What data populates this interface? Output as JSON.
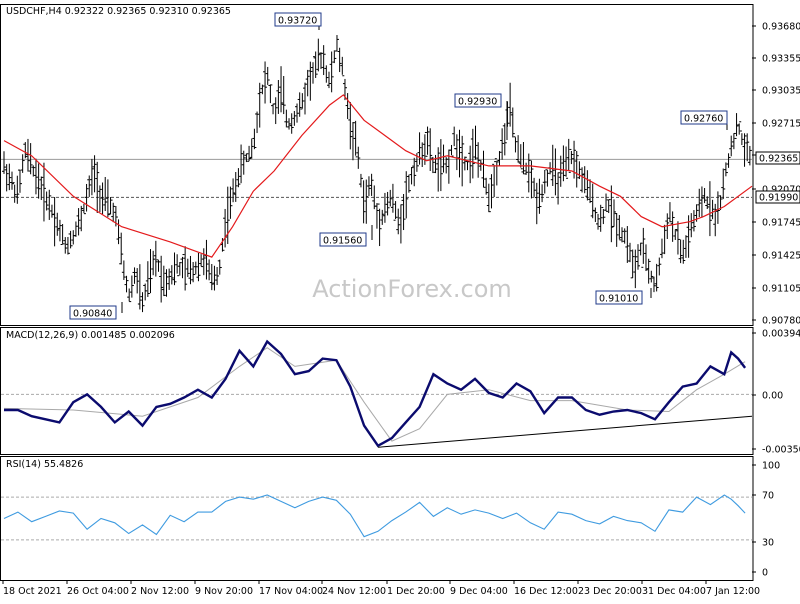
{
  "colors": {
    "background": "#ffffff",
    "price": "#000000",
    "moving_average": "#e41a1c",
    "macd": "#0b0b6e",
    "macd_signal": "#a9a9a9",
    "rsi": "#3f9be0",
    "level_line": "#555555",
    "border": "#000000"
  },
  "chart_data": [
    {
      "type": "candlestick",
      "title": "USDCHF,H4  0.92322 0.92365 0.92310 0.92365",
      "ylim": [
        0.9078,
        0.9372
      ],
      "y_ticks": [
        "0.93680",
        "0.93355",
        "0.93035",
        "0.92715",
        "0.92395",
        "0.92070",
        "0.91745",
        "0.91425",
        "0.91105",
        "0.90780"
      ],
      "current_price": "0.92365",
      "level_line": "0.91990",
      "x_ticks": [
        "18 Oct 2021",
        "26 Oct 04:00",
        "2 Nov 12:00",
        "9 Nov 20:00",
        "17 Nov 04:00",
        "24 Nov 12:00",
        "1 Dec 20:00",
        "9 Dec 04:00",
        "16 Dec 12:00",
        "23 Dec 20:00",
        "31 Dec 04:00",
        "7 Jan 12:00"
      ],
      "annotations": [
        "0.93720",
        "0.92930",
        "0.92760",
        "0.91560",
        "0.91010",
        "0.90840"
      ],
      "watermark": "ActionForex.com",
      "series": [
        {
          "points": [
            [
              0,
              0.923
            ],
            [
              2,
              0.92
            ],
            [
              3,
              0.9245
            ],
            [
              5,
              0.9215
            ],
            [
              7,
              0.9185
            ],
            [
              9,
              0.915
            ],
            [
              11,
              0.9175
            ],
            [
              13,
              0.9225
            ],
            [
              14,
              0.92
            ],
            [
              16,
              0.9185
            ],
            [
              17,
              0.914
            ],
            [
              18,
              0.91
            ],
            [
              19,
              0.9125
            ],
            [
              20,
              0.9095
            ],
            [
              21,
              0.912
            ],
            [
              22,
              0.914
            ],
            [
              23,
              0.9115
            ],
            [
              25,
              0.913
            ],
            [
              27,
              0.9125
            ],
            [
              29,
              0.914
            ],
            [
              30,
              0.9115
            ],
            [
              31,
              0.9125
            ],
            [
              32,
              0.9175
            ],
            [
              33,
              0.92
            ],
            [
              34,
              0.9225
            ],
            [
              36,
              0.925
            ],
            [
              37,
              0.93
            ],
            [
              38,
              0.932
            ],
            [
              39,
              0.928
            ],
            [
              40,
              0.9305
            ],
            [
              41,
              0.927
            ],
            [
              43,
              0.929
            ],
            [
              44,
              0.9315
            ],
            [
              46,
              0.934
            ],
            [
              47,
              0.931
            ],
            [
              48,
              0.935
            ],
            [
              49,
              0.932
            ],
            [
              50,
              0.927
            ],
            [
              51,
              0.9245
            ],
            [
              52,
              0.919
            ],
            [
              53,
              0.9215
            ],
            [
              54,
              0.9175
            ],
            [
              56,
              0.92
            ],
            [
              57,
              0.917
            ],
            [
              58,
              0.92
            ],
            [
              59,
              0.9225
            ],
            [
              61,
              0.9255
            ],
            [
              62,
              0.923
            ],
            [
              64,
              0.923
            ],
            [
              65,
              0.9255
            ],
            [
              67,
              0.923
            ],
            [
              68,
              0.925
            ],
            [
              70,
              0.92
            ],
            [
              72,
              0.925
            ],
            [
              73,
              0.929
            ],
            [
              74,
              0.9245
            ],
            [
              76,
              0.922
            ],
            [
              77,
              0.9195
            ],
            [
              79,
              0.923
            ],
            [
              80,
              0.9215
            ],
            [
              82,
              0.924
            ],
            [
              84,
              0.921
            ],
            [
              85,
              0.9195
            ],
            [
              86,
              0.917
            ],
            [
              87,
              0.9195
            ],
            [
              88,
              0.918
            ],
            [
              90,
              0.9155
            ],
            [
              91,
              0.9125
            ],
            [
              92,
              0.915
            ],
            [
              94,
              0.911
            ],
            [
              95,
              0.9145
            ],
            [
              96,
              0.9185
            ],
            [
              97,
              0.916
            ],
            [
              98,
              0.914
            ],
            [
              99,
              0.9165
            ],
            [
              100,
              0.918
            ],
            [
              101,
              0.92
            ],
            [
              103,
              0.918
            ],
            [
              104,
              0.9215
            ],
            [
              105,
              0.925
            ],
            [
              106,
              0.927
            ],
            [
              107,
              0.9245
            ],
            [
              108,
              0.924
            ]
          ]
        },
        {
          "points": [
            [
              0,
              0.9255
            ],
            [
              4,
              0.924
            ],
            [
              10,
              0.92
            ],
            [
              17,
              0.917
            ],
            [
              24,
              0.9155
            ],
            [
              30,
              0.914
            ],
            [
              33,
              0.917
            ],
            [
              36,
              0.9205
            ],
            [
              39,
              0.9225
            ],
            [
              43,
              0.926
            ],
            [
              47,
              0.929
            ],
            [
              49,
              0.93
            ],
            [
              52,
              0.9275
            ],
            [
              55,
              0.926
            ],
            [
              58,
              0.9245
            ],
            [
              61,
              0.9235
            ],
            [
              64,
              0.924
            ],
            [
              70,
              0.923
            ],
            [
              76,
              0.923
            ],
            [
              82,
              0.9225
            ],
            [
              86,
              0.921
            ],
            [
              89,
              0.92
            ],
            [
              92,
              0.918
            ],
            [
              95,
              0.917
            ],
            [
              99,
              0.9175
            ],
            [
              101,
              0.918
            ],
            [
              104,
              0.919
            ],
            [
              108,
              0.921
            ]
          ]
        }
      ]
    },
    {
      "type": "line",
      "title": "MACD(12,26,9) 0.001485 0.002096",
      "ylim": [
        -0.0036,
        0.00405
      ],
      "y_ticks": [
        "0.003944",
        "0.00",
        "-0.003506"
      ],
      "series": [
        {
          "points": [
            [
              0,
              -0.001
            ],
            [
              2,
              -0.001
            ],
            [
              4,
              -0.0014
            ],
            [
              6,
              -0.0016
            ],
            [
              8,
              -0.0018
            ],
            [
              10,
              -0.0005
            ],
            [
              12,
              0.0
            ],
            [
              14,
              -0.0008
            ],
            [
              16,
              -0.0018
            ],
            [
              18,
              -0.0011
            ],
            [
              20,
              -0.002
            ],
            [
              22,
              -0.0008
            ],
            [
              24,
              -0.0006
            ],
            [
              26,
              -0.0002
            ],
            [
              28,
              0.0003
            ],
            [
              30,
              -0.0002
            ],
            [
              32,
              0.001
            ],
            [
              34,
              0.0028
            ],
            [
              36,
              0.0018
            ],
            [
              38,
              0.0034
            ],
            [
              40,
              0.0026
            ],
            [
              42,
              0.0013
            ],
            [
              44,
              0.0015
            ],
            [
              46,
              0.0023
            ],
            [
              48,
              0.0022
            ],
            [
              50,
              0.0005
            ],
            [
              52,
              -0.002
            ],
            [
              54,
              -0.0033
            ],
            [
              56,
              -0.0028
            ],
            [
              58,
              -0.0018
            ],
            [
              60,
              -0.0008
            ],
            [
              62,
              0.0013
            ],
            [
              64,
              0.0007
            ],
            [
              66,
              0.0003
            ],
            [
              68,
              0.001
            ],
            [
              70,
              0.0001
            ],
            [
              72,
              -0.0002
            ],
            [
              74,
              0.0007
            ],
            [
              76,
              0.0002
            ],
            [
              78,
              -0.0012
            ],
            [
              80,
              -0.0002
            ],
            [
              82,
              -0.0002
            ],
            [
              84,
              -0.001
            ],
            [
              86,
              -0.0013
            ],
            [
              88,
              -0.0011
            ],
            [
              90,
              -0.001
            ],
            [
              92,
              -0.0012
            ],
            [
              94,
              -0.0016
            ],
            [
              96,
              -0.0005
            ],
            [
              98,
              0.0005
            ],
            [
              100,
              0.0007
            ],
            [
              102,
              0.0018
            ],
            [
              104,
              0.0013
            ],
            [
              105,
              0.0027
            ],
            [
              106,
              0.0023
            ],
            [
              107,
              0.0017
            ]
          ]
        },
        {
          "points": [
            [
              0,
              -0.0009
            ],
            [
              10,
              -0.001
            ],
            [
              20,
              -0.0014
            ],
            [
              28,
              -0.0002
            ],
            [
              34,
              0.0018
            ],
            [
              38,
              0.003
            ],
            [
              42,
              0.0018
            ],
            [
              48,
              0.0022
            ],
            [
              52,
              -0.0005
            ],
            [
              56,
              -0.003
            ],
            [
              60,
              -0.0022
            ],
            [
              64,
              0.0
            ],
            [
              70,
              0.0003
            ],
            [
              76,
              -0.0004
            ],
            [
              82,
              -0.0004
            ],
            [
              90,
              -0.001
            ],
            [
              96,
              -0.0011
            ],
            [
              100,
              0.0003
            ],
            [
              104,
              0.0013
            ],
            [
              107,
              0.0021
            ]
          ]
        },
        {
          "points": [
            [
              54,
              -0.0034
            ],
            [
              108,
              -0.0014
            ]
          ]
        }
      ]
    },
    {
      "type": "line",
      "title": "RSI(14) 55.4826",
      "ylim": [
        0,
        100
      ],
      "y_ticks": [
        "100",
        "70",
        "30",
        "0"
      ],
      "series": [
        {
          "points": [
            [
              0,
              50
            ],
            [
              2,
              56
            ],
            [
              4,
              47
            ],
            [
              6,
              52
            ],
            [
              8,
              57
            ],
            [
              10,
              55
            ],
            [
              12,
              40
            ],
            [
              14,
              50
            ],
            [
              16,
              46
            ],
            [
              18,
              36
            ],
            [
              20,
              44
            ],
            [
              22,
              35
            ],
            [
              24,
              53
            ],
            [
              26,
              47
            ],
            [
              28,
              56
            ],
            [
              30,
              56
            ],
            [
              32,
              66
            ],
            [
              34,
              70
            ],
            [
              36,
              68
            ],
            [
              38,
              72
            ],
            [
              40,
              66
            ],
            [
              42,
              60
            ],
            [
              44,
              66
            ],
            [
              46,
              70
            ],
            [
              48,
              67
            ],
            [
              50,
              54
            ],
            [
              52,
              33
            ],
            [
              54,
              38
            ],
            [
              56,
              48
            ],
            [
              58,
              56
            ],
            [
              60,
              65
            ],
            [
              62,
              52
            ],
            [
              64,
              60
            ],
            [
              66,
              54
            ],
            [
              68,
              58
            ],
            [
              70,
              55
            ],
            [
              72,
              50
            ],
            [
              74,
              55
            ],
            [
              76,
              46
            ],
            [
              78,
              40
            ],
            [
              80,
              56
            ],
            [
              82,
              54
            ],
            [
              84,
              48
            ],
            [
              86,
              45
            ],
            [
              88,
              52
            ],
            [
              90,
              48
            ],
            [
              92,
              46
            ],
            [
              94,
              38
            ],
            [
              96,
              58
            ],
            [
              98,
              56
            ],
            [
              100,
              70
            ],
            [
              102,
              63
            ],
            [
              104,
              72
            ],
            [
              105,
              68
            ],
            [
              106,
              62
            ],
            [
              107,
              55
            ]
          ]
        }
      ]
    }
  ]
}
